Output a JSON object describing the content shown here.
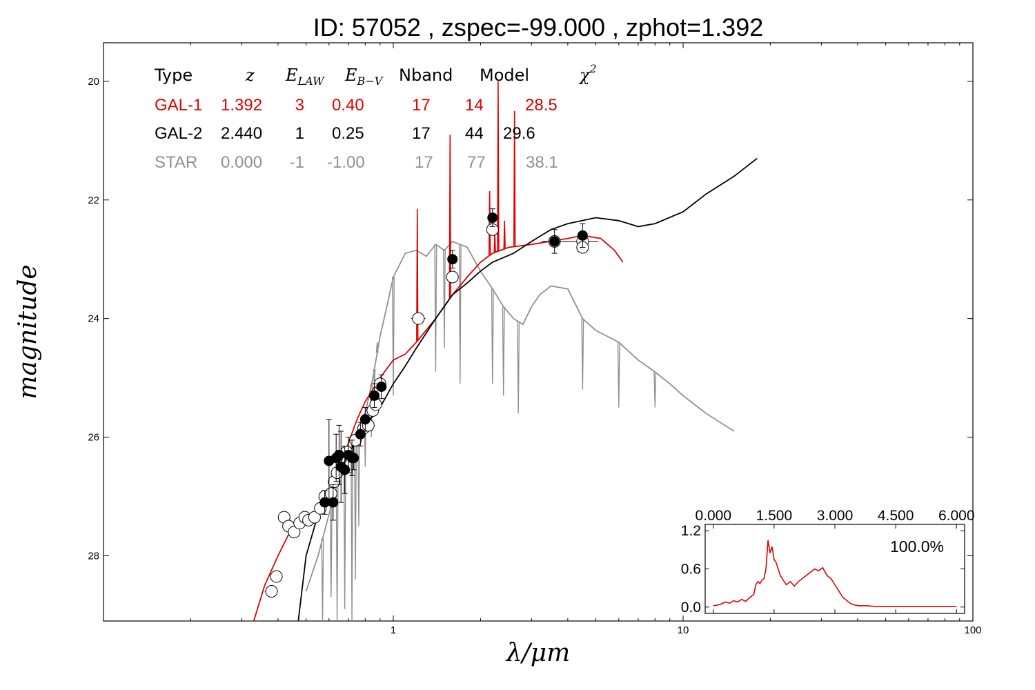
{
  "title": "ID:  57052 , zspec=-99.000 , zphot=1.392",
  "colors": {
    "gal1": "#e00000",
    "gal2": "#000000",
    "star": "#909090"
  },
  "table": {
    "headers": {
      "type": "Type",
      "z": "z",
      "elaw": "E",
      "elaw_sub": "LAW",
      "ebv": "E",
      "ebv_sub": "B−V",
      "nband": "Nband",
      "model": "Model",
      "chi": "χ",
      "chi_sup": "2"
    },
    "rows": [
      {
        "type": "GAL-1",
        "z": "1.392",
        "law": "3",
        "ebv": "0.40",
        "nband": "17",
        "model": "14",
        "chi2": "28.5",
        "color": "#e00000"
      },
      {
        "type": "GAL-2",
        "z": "2.440",
        "law": "1",
        "ebv": "0.25",
        "nband": "17",
        "model": "44",
        "chi2": "29.6",
        "color": "#000000"
      },
      {
        "type": "STAR",
        "z": "0.000",
        "law": "-1",
        "ebv": "-1.00",
        "nband": "17",
        "model": "77",
        "chi2": "38.1",
        "color": "#909090"
      }
    ]
  },
  "chart_data": [
    {
      "type": "line",
      "title": "ID:  57052 , zspec=-99.000 , zphot=1.392",
      "xlabel": "λ/μm",
      "ylabel": "magnitude",
      "xscale": "log",
      "xlim": [
        0.1,
        100
      ],
      "ylim": [
        29.1,
        19.35
      ],
      "y_inverted": true,
      "xticks": [
        1,
        10,
        100
      ],
      "xtick_labels": [
        "1",
        "10",
        "100"
      ],
      "yticks": [
        20,
        22,
        24,
        26,
        28
      ],
      "ytick_labels": [
        "20",
        "22",
        "24",
        "26",
        "28"
      ],
      "series": [
        {
          "name": "GAL-1",
          "color": "#e00000",
          "x": [
            0.33,
            0.36,
            0.4,
            0.45,
            0.5,
            0.55,
            0.6,
            0.65,
            0.7,
            0.75,
            0.8,
            0.9,
            1.0,
            1.1,
            1.2,
            1.4,
            1.6,
            1.8,
            2.0,
            2.2,
            2.5,
            3.0,
            4.0,
            4.5,
            5.2,
            5.8,
            6.2
          ],
          "y": [
            29.1,
            28.5,
            28.0,
            27.5,
            27.4,
            27.3,
            27.0,
            26.5,
            26.1,
            25.7,
            25.4,
            25.0,
            24.7,
            24.6,
            24.4,
            24.0,
            23.6,
            23.3,
            23.05,
            22.9,
            22.8,
            22.75,
            22.65,
            22.6,
            22.65,
            22.85,
            23.05
          ],
          "peaks": [
            {
              "x": 1.21,
              "y": 22.15
            },
            {
              "x": 1.57,
              "y": 20.9
            },
            {
              "x": 2.15,
              "y": 21.85
            },
            {
              "x": 2.24,
              "y": 22.55
            },
            {
              "x": 2.3,
              "y": 20.0
            },
            {
              "x": 2.42,
              "y": 22.35
            },
            {
              "x": 2.62,
              "y": 20.5
            }
          ]
        },
        {
          "name": "GAL-2",
          "color": "#000000",
          "x": [
            0.47,
            0.5,
            0.55,
            0.6,
            0.65,
            0.7,
            0.8,
            0.9,
            1.0,
            1.1,
            1.2,
            1.4,
            1.6,
            1.8,
            2.0,
            2.2,
            2.6,
            3.0,
            3.5,
            4.0,
            5.0,
            6.0,
            7.0,
            8.0,
            10.0,
            12.0,
            15.0,
            18.0
          ],
          "y": [
            29.1,
            28.0,
            27.3,
            27.0,
            26.6,
            26.3,
            25.8,
            25.5,
            25.1,
            24.8,
            24.5,
            24.0,
            23.6,
            23.4,
            23.2,
            23.05,
            22.9,
            22.7,
            22.5,
            22.4,
            22.3,
            22.35,
            22.45,
            22.4,
            22.2,
            21.9,
            21.6,
            21.3
          ]
        },
        {
          "name": "STAR",
          "color": "#909090",
          "x": [
            0.5,
            0.55,
            0.6,
            0.65,
            0.7,
            0.75,
            0.8,
            0.85,
            0.9,
            0.95,
            1.0,
            1.1,
            1.2,
            1.3,
            1.4,
            1.5,
            1.6,
            1.7,
            1.8,
            2.0,
            2.2,
            2.4,
            2.6,
            2.8,
            3.0,
            3.2,
            3.5,
            4.0,
            4.5,
            5.0,
            6.0,
            7.0,
            8.0,
            9.0,
            10.0,
            12.0,
            15.0
          ],
          "y": [
            28.6,
            28.0,
            27.3,
            26.7,
            26.3,
            26.0,
            25.6,
            25.0,
            24.3,
            23.8,
            23.3,
            22.9,
            22.85,
            22.95,
            22.75,
            22.85,
            22.7,
            22.75,
            22.8,
            23.2,
            23.5,
            23.8,
            24.0,
            24.1,
            23.8,
            23.6,
            23.45,
            23.5,
            24.0,
            24.2,
            24.4,
            24.7,
            24.9,
            25.1,
            25.3,
            25.6,
            25.9
          ],
          "dips": [
            {
              "x": 0.57,
              "y": 29.1
            },
            {
              "x": 0.61,
              "y": 28.7
            },
            {
              "x": 0.64,
              "y": 29.1
            },
            {
              "x": 0.68,
              "y": 28.9
            },
            {
              "x": 0.72,
              "y": 29.1
            },
            {
              "x": 0.74,
              "y": 28.4
            },
            {
              "x": 0.76,
              "y": 27.5
            },
            {
              "x": 0.8,
              "y": 26.5
            },
            {
              "x": 0.84,
              "y": 26.0
            },
            {
              "x": 0.86,
              "y": 25.1
            },
            {
              "x": 0.88,
              "y": 24.4
            },
            {
              "x": 1.0,
              "y": 25.3
            },
            {
              "x": 1.4,
              "y": 24.9
            },
            {
              "x": 1.5,
              "y": 24.5
            },
            {
              "x": 1.7,
              "y": 25.1
            },
            {
              "x": 2.2,
              "y": 25.1
            },
            {
              "x": 2.4,
              "y": 25.3
            },
            {
              "x": 2.7,
              "y": 25.6
            },
            {
              "x": 4.5,
              "y": 25.2
            },
            {
              "x": 6.0,
              "y": 25.5
            },
            {
              "x": 8.0,
              "y": 25.5
            }
          ]
        }
      ],
      "photometry": {
        "observed": [
          {
            "x": 0.58,
            "y": 27.1,
            "err": 0.2
          },
          {
            "x": 0.6,
            "y": 26.4,
            "err": 0.7
          },
          {
            "x": 0.62,
            "y": 27.1,
            "err": 0.3
          },
          {
            "x": 0.635,
            "y": 26.35,
            "err": 0.4
          },
          {
            "x": 0.65,
            "y": 26.3,
            "err": 0.5
          },
          {
            "x": 0.66,
            "y": 26.5,
            "err": 0.6
          },
          {
            "x": 0.68,
            "y": 26.55,
            "err": 0.4
          },
          {
            "x": 0.7,
            "y": 26.3,
            "err": 0.3
          },
          {
            "x": 0.72,
            "y": 26.35,
            "err": 0.3
          },
          {
            "x": 0.73,
            "y": 26.35,
            "err": 0.2
          },
          {
            "x": 0.77,
            "y": 25.95,
            "err": 0.2
          },
          {
            "x": 0.8,
            "y": 25.7,
            "err": 0.2
          },
          {
            "x": 0.86,
            "y": 25.3,
            "err": 0.2
          },
          {
            "x": 0.91,
            "y": 25.15,
            "err": 0.2
          },
          {
            "x": 1.6,
            "y": 23.0,
            "err": 0.15
          },
          {
            "x": 2.2,
            "y": 22.3,
            "err": 0.15
          },
          {
            "x": 3.6,
            "y": 22.7,
            "err": 0.2
          },
          {
            "x": 4.5,
            "y": 22.6,
            "err": 0.2
          }
        ],
        "model": [
          {
            "x": 0.38,
            "y": 28.6,
            "xerr": 0.02
          },
          {
            "x": 0.395,
            "y": 28.35,
            "xerr": 0.0
          },
          {
            "x": 0.42,
            "y": 27.35,
            "xerr": 0.0
          },
          {
            "x": 0.435,
            "y": 27.5,
            "xerr": 0.0
          },
          {
            "x": 0.455,
            "y": 27.6,
            "xerr": 0.0
          },
          {
            "x": 0.475,
            "y": 27.45,
            "xerr": 0.0
          },
          {
            "x": 0.495,
            "y": 27.35,
            "xerr": 0.0
          },
          {
            "x": 0.51,
            "y": 27.4,
            "xerr": 0.0
          },
          {
            "x": 0.535,
            "y": 27.35,
            "xerr": 0.0
          },
          {
            "x": 0.56,
            "y": 27.2,
            "xerr": 0.0
          },
          {
            "x": 0.58,
            "y": 27.0,
            "xerr": 0.0
          },
          {
            "x": 0.61,
            "y": 26.95,
            "xerr": 0.0
          },
          {
            "x": 0.625,
            "y": 26.75,
            "xerr": 0.0
          },
          {
            "x": 0.64,
            "y": 26.6,
            "xerr": 0.0
          },
          {
            "x": 0.69,
            "y": 26.25,
            "xerr": 0.0
          },
          {
            "x": 0.74,
            "y": 26.05,
            "xerr": 0.0
          },
          {
            "x": 0.79,
            "y": 25.85,
            "xerr": 0.0
          },
          {
            "x": 0.82,
            "y": 25.8,
            "xerr": 0.0
          },
          {
            "x": 0.85,
            "y": 25.55,
            "xerr": 0.0
          },
          {
            "x": 0.87,
            "y": 25.45,
            "xerr": 0.0
          },
          {
            "x": 0.9,
            "y": 25.1,
            "xerr": 0.0
          },
          {
            "x": 1.22,
            "y": 24.0,
            "xerr": 0.07
          },
          {
            "x": 1.6,
            "y": 23.3,
            "xerr": 0.0
          },
          {
            "x": 2.2,
            "y": 22.5,
            "xerr": 0.0
          },
          {
            "x": 3.6,
            "y": 22.7,
            "xerr": 0.35
          },
          {
            "x": 4.5,
            "y": 22.7,
            "xerr": 0.6
          },
          {
            "x": 4.5,
            "y": 22.8,
            "xerr": 0.0
          }
        ]
      }
    },
    {
      "type": "line",
      "title": "",
      "xlabel": "",
      "ylabel": "",
      "xlim": [
        -0.2,
        6.2
      ],
      "ylim": [
        -0.1,
        1.3
      ],
      "xticks": [
        0.0,
        1.5,
        3.0,
        4.5,
        6.0
      ],
      "xtick_labels": [
        "0.000",
        "1.500",
        "3.000",
        "4.500",
        "6.000"
      ],
      "yticks": [
        0.0,
        0.6,
        1.2
      ],
      "ytick_labels": [
        "0.0",
        "0.6",
        "1.2"
      ],
      "annotation": "100.0%",
      "series": [
        {
          "name": "",
          "color": "#e00000",
          "x": [
            0.0,
            0.1,
            0.2,
            0.3,
            0.4,
            0.5,
            0.6,
            0.7,
            0.8,
            0.9,
            1.0,
            1.05,
            1.1,
            1.15,
            1.2,
            1.25,
            1.3,
            1.35,
            1.4,
            1.45,
            1.5,
            1.55,
            1.6,
            1.65,
            1.7,
            1.8,
            1.9,
            2.0,
            2.1,
            2.2,
            2.3,
            2.4,
            2.5,
            2.6,
            2.7,
            2.8,
            2.9,
            3.0,
            3.1,
            3.2,
            3.3,
            3.4,
            3.5,
            3.6,
            3.8,
            4.0,
            4.5,
            5.0,
            5.5,
            6.0
          ],
          "y": [
            0.02,
            0.03,
            0.05,
            0.08,
            0.06,
            0.1,
            0.08,
            0.12,
            0.09,
            0.15,
            0.2,
            0.35,
            0.4,
            0.37,
            0.42,
            0.45,
            0.6,
            1.05,
            0.85,
            0.95,
            0.75,
            0.7,
            0.6,
            0.5,
            0.45,
            0.35,
            0.4,
            0.33,
            0.4,
            0.45,
            0.5,
            0.55,
            0.6,
            0.57,
            0.62,
            0.5,
            0.45,
            0.35,
            0.25,
            0.15,
            0.1,
            0.05,
            0.03,
            0.02,
            0.02,
            0.01,
            0.01,
            0.01,
            0.01,
            0.01
          ]
        }
      ]
    }
  ]
}
